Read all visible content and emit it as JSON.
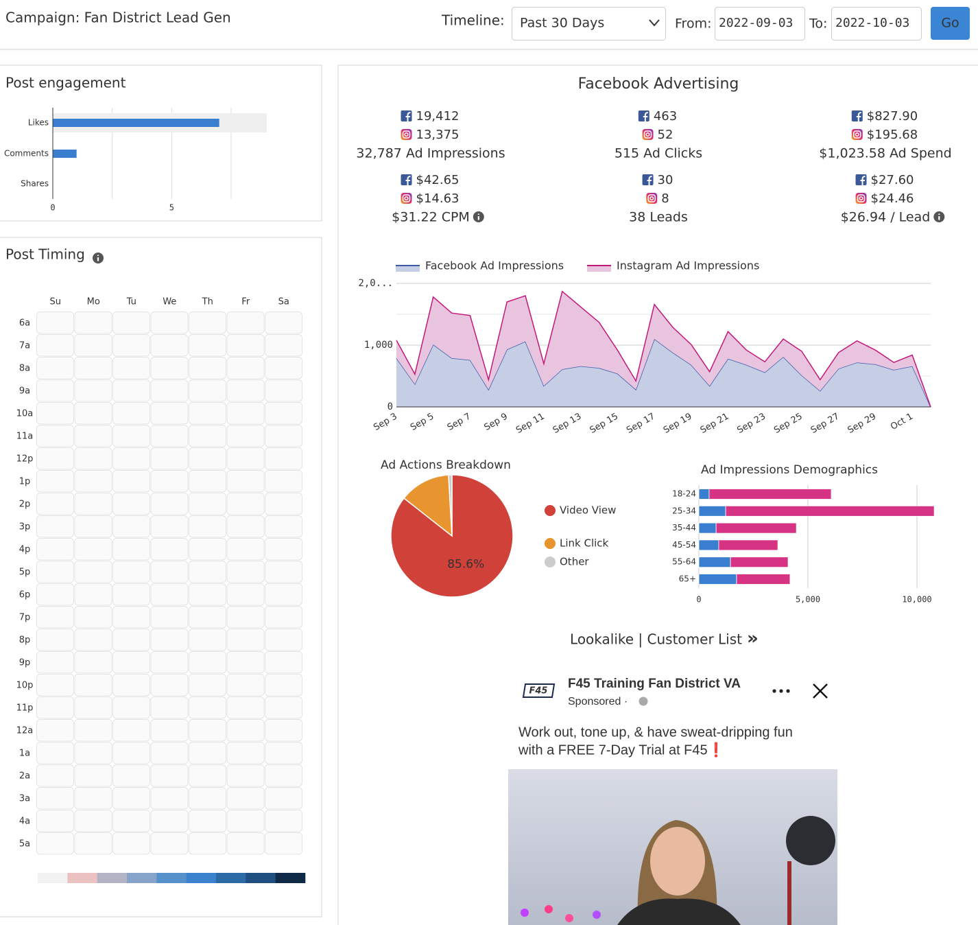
{
  "header": {
    "title": "Campaign: Fan District Lead Gen",
    "timeline_label": "Timeline:",
    "timeline_value": "Past 30 Days",
    "from_label": "From:",
    "from_value": "2022-09-03",
    "to_label": "To:",
    "to_value": "2022-10-03",
    "go": "Go"
  },
  "timing": {
    "title": "Post Timing",
    "days": [
      "Su",
      "Mo",
      "Tu",
      "We",
      "Th",
      "Fr",
      "Sa"
    ],
    "hours": [
      "6a",
      "7a",
      "8a",
      "9a",
      "10a",
      "11a",
      "12p",
      "1p",
      "2p",
      "3p",
      "4p",
      "5p",
      "6p",
      "7p",
      "8p",
      "9p",
      "10p",
      "11p",
      "12a",
      "1a",
      "2a",
      "3a",
      "4a",
      "5a"
    ],
    "scale_colors": [
      "#f2f2f2",
      "#ecc1c1",
      "#b3b3c6",
      "#86a3c9",
      "#5592cc",
      "#3a82cc",
      "#2c6aa6",
      "#1f4f80",
      "#0f2a47"
    ]
  },
  "facebook": {
    "title": "Facebook Advertising",
    "metrics": [
      {
        "fb": "19,412",
        "ig": "13,375",
        "total": "32,787 Ad Impressions"
      },
      {
        "fb": "463",
        "ig": "52",
        "total": "515 Ad Clicks"
      },
      {
        "fb": "$827.90",
        "ig": "$195.68",
        "total": "$1,023.58 Ad Spend"
      },
      {
        "fb": "$42.65",
        "ig": "$14.63",
        "total": "$31.22 CPM",
        "info": true
      },
      {
        "fb": "30",
        "ig": "8",
        "total": "38 Leads"
      },
      {
        "fb": "$27.60",
        "ig": "$24.46",
        "total": "$26.94 / Lead",
        "info": true
      }
    ]
  },
  "chart_data": [
    {
      "type": "bar",
      "orientation": "horizontal",
      "title": "Post engagement",
      "categories": [
        "Likes",
        "Comments",
        "Shares"
      ],
      "values": [
        7,
        1,
        0
      ],
      "color": "#3a7fcf",
      "xlim": [
        0,
        9
      ],
      "xticks": [
        0,
        5
      ],
      "minor_xticks": [
        2.5,
        7.5
      ],
      "highlight_color": "#efefef"
    },
    {
      "type": "area",
      "stacked": true,
      "categories": [
        "Sep 3",
        null,
        "Sep 5",
        null,
        "Sep 7",
        null,
        "Sep 9",
        null,
        "Sep 11",
        null,
        "Sep 13",
        null,
        "Sep 15",
        null,
        "Sep 17",
        null,
        "Sep 19",
        null,
        "Sep 21",
        null,
        "Sep 23",
        null,
        "Sep 25",
        null,
        "Sep 27",
        null,
        "Sep 29",
        null,
        "Oct 1",
        null
      ],
      "series": [
        {
          "name": "Facebook Ad Impressions",
          "color": "#3b5ba9",
          "fill": "#c6cee6",
          "values": [
            790,
            370,
            1010,
            790,
            760,
            280,
            930,
            1060,
            340,
            610,
            660,
            630,
            540,
            280,
            1100,
            880,
            680,
            340,
            780,
            680,
            560,
            810,
            510,
            260,
            620,
            720,
            690,
            600,
            660,
            0
          ]
        },
        {
          "name": "Instagram Ad Impressions",
          "color": "#c2187a",
          "fill": "#e9c4de",
          "values": [
            290,
            160,
            770,
            730,
            720,
            160,
            770,
            740,
            360,
            1260,
            960,
            740,
            380,
            140,
            560,
            410,
            330,
            230,
            440,
            240,
            170,
            290,
            390,
            180,
            260,
            350,
            230,
            120,
            180,
            0
          ]
        }
      ],
      "ylim": [
        0,
        2000
      ],
      "yticks": [
        0,
        {
          "value": 1000,
          "label": "1,000"
        },
        {
          "value": 2000,
          "label": "2,0..."
        }
      ],
      "minor_yticks": [
        500,
        1500
      ],
      "grid": true
    },
    {
      "type": "pie",
      "title": "Ad Actions Breakdown",
      "categories": [
        "Video View",
        "Link Click",
        "Other"
      ],
      "values": [
        85.6,
        13.5,
        0.9
      ],
      "value_labels": [
        "85.6%",
        null,
        null
      ],
      "colors": [
        "#d0413a",
        "#e8952f",
        "#cccccc"
      ]
    },
    {
      "type": "bar",
      "orientation": "horizontal",
      "stacked": true,
      "title": "Ad Impressions Demographics",
      "categories": [
        "18-24",
        "25-34",
        "35-44",
        "45-54",
        "55-64",
        "65+"
      ],
      "series": [
        {
          "color": "#3a7fcf",
          "values": [
            470,
            1230,
            790,
            910,
            1450,
            1730
          ]
        },
        {
          "color": "#d63384",
          "values": [
            5600,
            9560,
            3680,
            2710,
            2640,
            2450
          ]
        }
      ],
      "xlim": [
        0,
        11000
      ],
      "xticks": [
        0,
        {
          "value": 5000,
          "label": "5,000"
        },
        {
          "value": 10000,
          "label": "10,000"
        }
      ]
    }
  ],
  "audience": {
    "label": "Lookalike | Customer List",
    "arrow": "»"
  },
  "ad": {
    "logo": "F45",
    "page": "F45 Training Fan District VA",
    "sponsored": "Sponsored ·",
    "text": [
      "Work out, tone up, & have sweat-dripping fun",
      "with a FREE 7-Day Trial at F45❗"
    ]
  }
}
